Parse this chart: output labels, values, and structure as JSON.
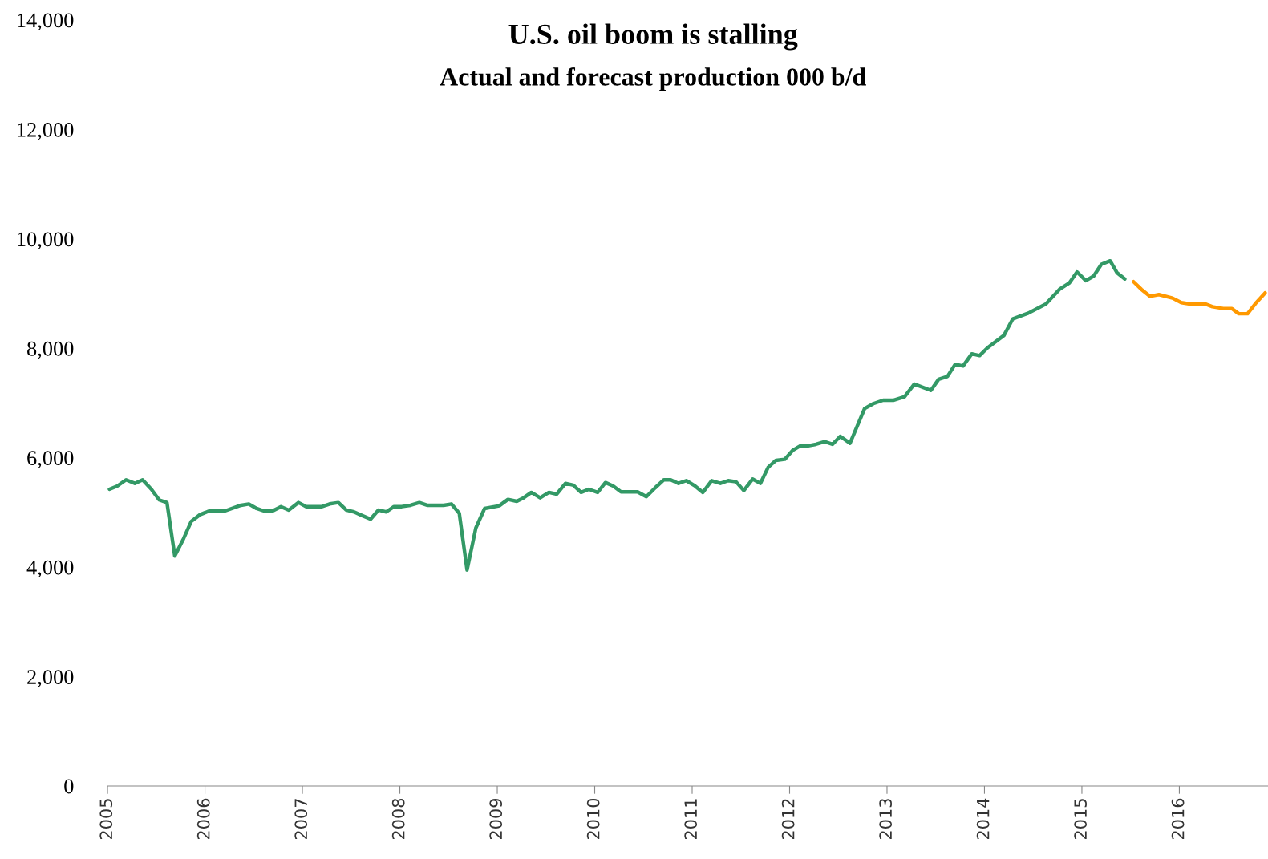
{
  "chart_data": {
    "type": "line",
    "title": "U.S. oil boom is stalling",
    "subtitle": "Actual and forecast production 000 b/d",
    "xlim": [
      2005,
      2016.91
    ],
    "xticks": [
      {
        "value": 2005,
        "label": "2005"
      },
      {
        "value": 2006,
        "label": "2006"
      },
      {
        "value": 2007,
        "label": "2007"
      },
      {
        "value": 2008,
        "label": "2008"
      },
      {
        "value": 2009,
        "label": "2009"
      },
      {
        "value": 2010,
        "label": "2010"
      },
      {
        "value": 2011,
        "label": "2011"
      },
      {
        "value": 2012,
        "label": "2012"
      },
      {
        "value": 2013,
        "label": "2013"
      },
      {
        "value": 2014,
        "label": "2014"
      },
      {
        "value": 2015,
        "label": "2015"
      },
      {
        "value": 2016,
        "label": "2016"
      }
    ],
    "ylim": [
      0,
      14000
    ],
    "yticks": [
      0,
      {
        "value": 2000,
        "label": "2,000"
      },
      {
        "value": 4000,
        "label": "4,000"
      },
      {
        "value": 6000,
        "label": "6,000"
      },
      {
        "value": 8000,
        "label": "8,000"
      },
      {
        "value": 10000,
        "label": "10,000"
      },
      {
        "value": 12000,
        "label": "12,000"
      },
      {
        "value": 14000,
        "label": "14,000"
      }
    ],
    "grid": false,
    "legend": false,
    "marker": "none",
    "line_style": "solid",
    "series": [
      {
        "color": "#339966",
        "x": [
          2005.02,
          2005.1,
          2005.19,
          2005.28,
          2005.36,
          2005.45,
          2005.53,
          2005.61,
          2005.69,
          2005.78,
          2005.86,
          2005.95,
          2006.04,
          2006.2,
          2006.37,
          2006.45,
          2006.53,
          2006.61,
          2006.69,
          2006.78,
          2006.86,
          2006.96,
          2007.04,
          2007.2,
          2007.28,
          2007.37,
          2007.45,
          2007.53,
          2007.61,
          2007.7,
          2007.78,
          2007.86,
          2007.94,
          2008.02,
          2008.11,
          2008.2,
          2008.28,
          2008.45,
          2008.53,
          2008.61,
          2008.69,
          2008.78,
          2008.87,
          2009.02,
          2009.11,
          2009.2,
          2009.27,
          2009.35,
          2009.44,
          2009.53,
          2009.61,
          2009.7,
          2009.78,
          2009.86,
          2009.94,
          2010.03,
          2010.11,
          2010.19,
          2010.27,
          2010.44,
          2010.53,
          2010.62,
          2010.71,
          2010.78,
          2010.86,
          2010.94,
          2011.03,
          2011.11,
          2011.2,
          2011.29,
          2011.37,
          2011.45,
          2011.53,
          2011.62,
          2011.7,
          2011.78,
          2011.86,
          2011.95,
          2012.03,
          2012.11,
          2012.19,
          2012.27,
          2012.36,
          2012.44,
          2012.52,
          2012.62,
          2012.77,
          2012.86,
          2012.96,
          2013.07,
          2013.18,
          2013.28,
          2013.45,
          2013.53,
          2013.62,
          2013.7,
          2013.78,
          2013.87,
          2013.95,
          2014.03,
          2014.2,
          2014.29,
          2014.45,
          2014.63,
          2014.77,
          2014.87,
          2014.95,
          2015.04,
          2015.12,
          2015.2,
          2015.29,
          2015.36,
          2015.44
        ],
        "values": [
          5424,
          5483,
          5596,
          5531,
          5596,
          5424,
          5229,
          5180,
          4203,
          4520,
          4838,
          4960,
          5024,
          5024,
          5131,
          5155,
          5072,
          5024,
          5024,
          5106,
          5043,
          5180,
          5106,
          5106,
          5155,
          5180,
          5043,
          5009,
          4945,
          4877,
          5043,
          5009,
          5106,
          5106,
          5131,
          5180,
          5131,
          5131,
          5155,
          4984,
          3948,
          4716,
          5072,
          5121,
          5238,
          5204,
          5267,
          5366,
          5267,
          5366,
          5336,
          5531,
          5498,
          5366,
          5424,
          5366,
          5546,
          5483,
          5376,
          5376,
          5288,
          5449,
          5596,
          5596,
          5531,
          5581,
          5483,
          5366,
          5581,
          5531,
          5581,
          5561,
          5400,
          5610,
          5531,
          5825,
          5952,
          5971,
          6132,
          6216,
          6216,
          6245,
          6294,
          6245,
          6392,
          6264,
          6899,
          6988,
          7051,
          7051,
          7116,
          7345,
          7230,
          7434,
          7485,
          7708,
          7676,
          7899,
          7867,
          8007,
          8236,
          8536,
          8643,
          8811,
          9078,
          9192,
          9396,
          9236,
          9319,
          9536,
          9599,
          9382,
          9268
        ]
      },
      {
        "color": "#ff9900",
        "x": [
          2015.53,
          2015.61,
          2015.7,
          2015.79,
          2015.93,
          2016.02,
          2016.11,
          2016.27,
          2016.34,
          2016.45,
          2016.54,
          2016.61,
          2016.7,
          2016.79,
          2016.88
        ],
        "values": [
          9217,
          9078,
          8950,
          8982,
          8918,
          8836,
          8809,
          8809,
          8760,
          8727,
          8727,
          8632,
          8632,
          8836,
          9013
        ]
      }
    ]
  }
}
